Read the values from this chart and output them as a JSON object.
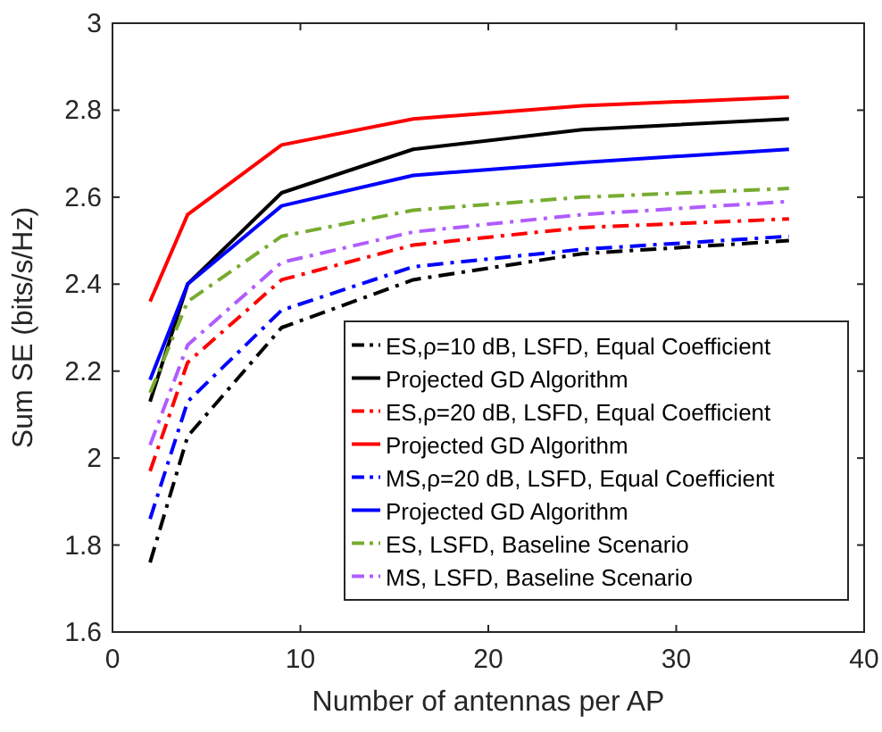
{
  "chart_data": {
    "type": "line",
    "xlabel": "Number of antennas per AP",
    "ylabel": "Sum SE (bits/s/Hz)",
    "x": [
      2,
      4,
      9,
      16,
      25,
      36
    ],
    "xlim": [
      0,
      40
    ],
    "xticks": [
      0,
      10,
      20,
      30,
      40
    ],
    "ylim": [
      1.6,
      3
    ],
    "yticks": [
      1.6,
      1.8,
      2,
      2.2,
      2.4,
      2.6,
      2.8,
      3
    ],
    "grid": false,
    "legend": "bottom right",
    "series": [
      {
        "name": "ES,ρ=10 dB, LSFD, Equal Coefficient",
        "color": "#000000",
        "line_style": "dashdot",
        "values": [
          1.76,
          2.05,
          2.3,
          2.41,
          2.47,
          2.5
        ]
      },
      {
        "name": "Projected GD Algorithm",
        "color": "#000000",
        "line_style": "solid",
        "values": [
          2.13,
          2.4,
          2.61,
          2.71,
          2.755,
          2.78
        ]
      },
      {
        "name": "ES,ρ=20 dB, LSFD, Equal Coefficient",
        "color": "#ff0000",
        "line_style": "dashdot",
        "values": [
          1.97,
          2.22,
          2.41,
          2.49,
          2.53,
          2.55
        ]
      },
      {
        "name": "Projected GD Algorithm",
        "color": "#ff0000",
        "line_style": "solid",
        "values": [
          2.36,
          2.56,
          2.72,
          2.78,
          2.81,
          2.83
        ]
      },
      {
        "name": "MS,ρ=20 dB, LSFD, Equal Coefficient",
        "color": "#0000ff",
        "line_style": "dashdot",
        "values": [
          1.86,
          2.13,
          2.34,
          2.44,
          2.48,
          2.51
        ]
      },
      {
        "name": "Projected GD Algorithm",
        "color": "#0000ff",
        "line_style": "solid",
        "values": [
          2.18,
          2.4,
          2.58,
          2.65,
          2.68,
          2.71
        ]
      },
      {
        "name": "ES, LSFD, Baseline Scenario",
        "color": "#77ac30",
        "line_style": "dashdot",
        "values": [
          2.15,
          2.36,
          2.51,
          2.57,
          2.6,
          2.62
        ]
      },
      {
        "name": "MS, LSFD, Baseline Scenario",
        "color": "#b05cff",
        "line_style": "dashdot",
        "values": [
          2.03,
          2.26,
          2.45,
          2.52,
          2.56,
          2.59
        ]
      }
    ]
  }
}
